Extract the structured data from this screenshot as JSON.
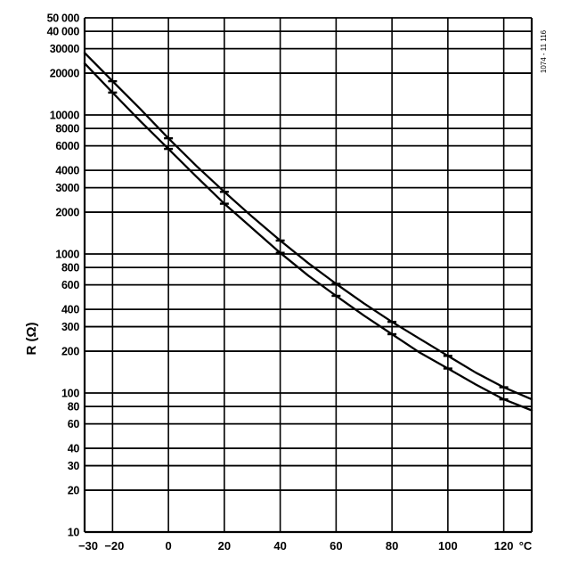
{
  "chart_data": {
    "type": "line",
    "ylabel": "R (Ω)",
    "figure_id": "1074 - 11 116",
    "x_unit": "°C",
    "xlim": [
      -30,
      130
    ],
    "ylim": [
      10,
      50000
    ],
    "y_scale": "log",
    "grid": true,
    "x_tick_values": [
      -30,
      -20,
      0,
      20,
      40,
      60,
      80,
      100,
      120
    ],
    "x_tick_labels": [
      "−30",
      "−20",
      "0",
      "20",
      "40",
      "60",
      "80",
      "100",
      "120"
    ],
    "x_gridlines": [
      -20,
      0,
      20,
      40,
      60,
      80,
      100,
      120
    ],
    "y_ticks": [
      {
        "value": 50000,
        "label": "50 000"
      },
      {
        "value": 40000,
        "label": "40 000"
      },
      {
        "value": 30000,
        "label": "30000"
      },
      {
        "value": 20000,
        "label": "20000"
      },
      {
        "value": 10000,
        "label": "10000"
      },
      {
        "value": 8000,
        "label": "8000"
      },
      {
        "value": 6000,
        "label": "6000"
      },
      {
        "value": 4000,
        "label": "4000"
      },
      {
        "value": 3000,
        "label": "3000"
      },
      {
        "value": 2000,
        "label": "2000"
      },
      {
        "value": 1000,
        "label": "1000"
      },
      {
        "value": 800,
        "label": "800"
      },
      {
        "value": 600,
        "label": "600"
      },
      {
        "value": 400,
        "label": "400"
      },
      {
        "value": 300,
        "label": "300"
      },
      {
        "value": 200,
        "label": "200"
      },
      {
        "value": 100,
        "label": "100"
      },
      {
        "value": 80,
        "label": "80"
      },
      {
        "value": 60,
        "label": "60"
      },
      {
        "value": 40,
        "label": "40"
      },
      {
        "value": 30,
        "label": "30"
      },
      {
        "value": 20,
        "label": "20"
      },
      {
        "value": 10,
        "label": "10"
      }
    ],
    "series": [
      {
        "x": [
          -30,
          -20,
          -10,
          0,
          10,
          20,
          30,
          40,
          50,
          60,
          70,
          80,
          90,
          100,
          110,
          120,
          130
        ],
        "y": [
          28000,
          17500,
          11000,
          6800,
          4300,
          2800,
          1850,
          1250,
          860,
          610,
          440,
          325,
          245,
          185,
          140,
          110,
          90
        ],
        "markers": [
          -20,
          0,
          20,
          40,
          60,
          80,
          100,
          120
        ]
      },
      {
        "x": [
          -30,
          -20,
          -10,
          0,
          10,
          20,
          30,
          40,
          50,
          60,
          70,
          80,
          90,
          100,
          110,
          120,
          130
        ],
        "y": [
          23500,
          14500,
          9000,
          5700,
          3600,
          2300,
          1530,
          1020,
          700,
          500,
          360,
          265,
          195,
          150,
          115,
          90,
          75
        ],
        "markers": [
          -20,
          0,
          20,
          40,
          60,
          80,
          100,
          120
        ]
      }
    ]
  }
}
